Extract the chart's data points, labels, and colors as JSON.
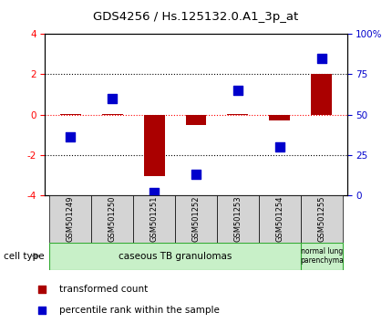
{
  "title": "GDS4256 / Hs.125132.0.A1_3p_at",
  "samples": [
    "GSM501249",
    "GSM501250",
    "GSM501251",
    "GSM501252",
    "GSM501253",
    "GSM501254",
    "GSM501255"
  ],
  "red_values": [
    0.05,
    0.05,
    -3.05,
    -0.5,
    0.05,
    -0.3,
    2.0
  ],
  "blue_values": [
    36,
    60,
    2,
    13,
    65,
    30,
    85
  ],
  "ylim_left": [
    -4,
    4
  ],
  "ylim_right": [
    0,
    100
  ],
  "yticks_left": [
    -4,
    -2,
    0,
    2,
    4
  ],
  "yticks_right": [
    0,
    25,
    50,
    75,
    100
  ],
  "ytick_labels_right": [
    "0",
    "25",
    "50",
    "75",
    "100%"
  ],
  "group1_label": "caseous TB granulomas",
  "group2_label": "normal lung\nparenchyma",
  "group_bg_color": "#c8f0c8",
  "sample_bg_color": "#d4d4d4",
  "legend_red_label": "transformed count",
  "legend_blue_label": "percentile rank within the sample",
  "red_color": "#aa0000",
  "blue_color": "#0000cc",
  "bar_width": 0.5,
  "dot_size": 45,
  "title_fontsize": 9.5,
  "tick_fontsize": 7.5,
  "sample_fontsize": 6.0,
  "legend_fontsize": 7.5,
  "group_fontsize": 7.5,
  "celltype_fontsize": 7.5
}
